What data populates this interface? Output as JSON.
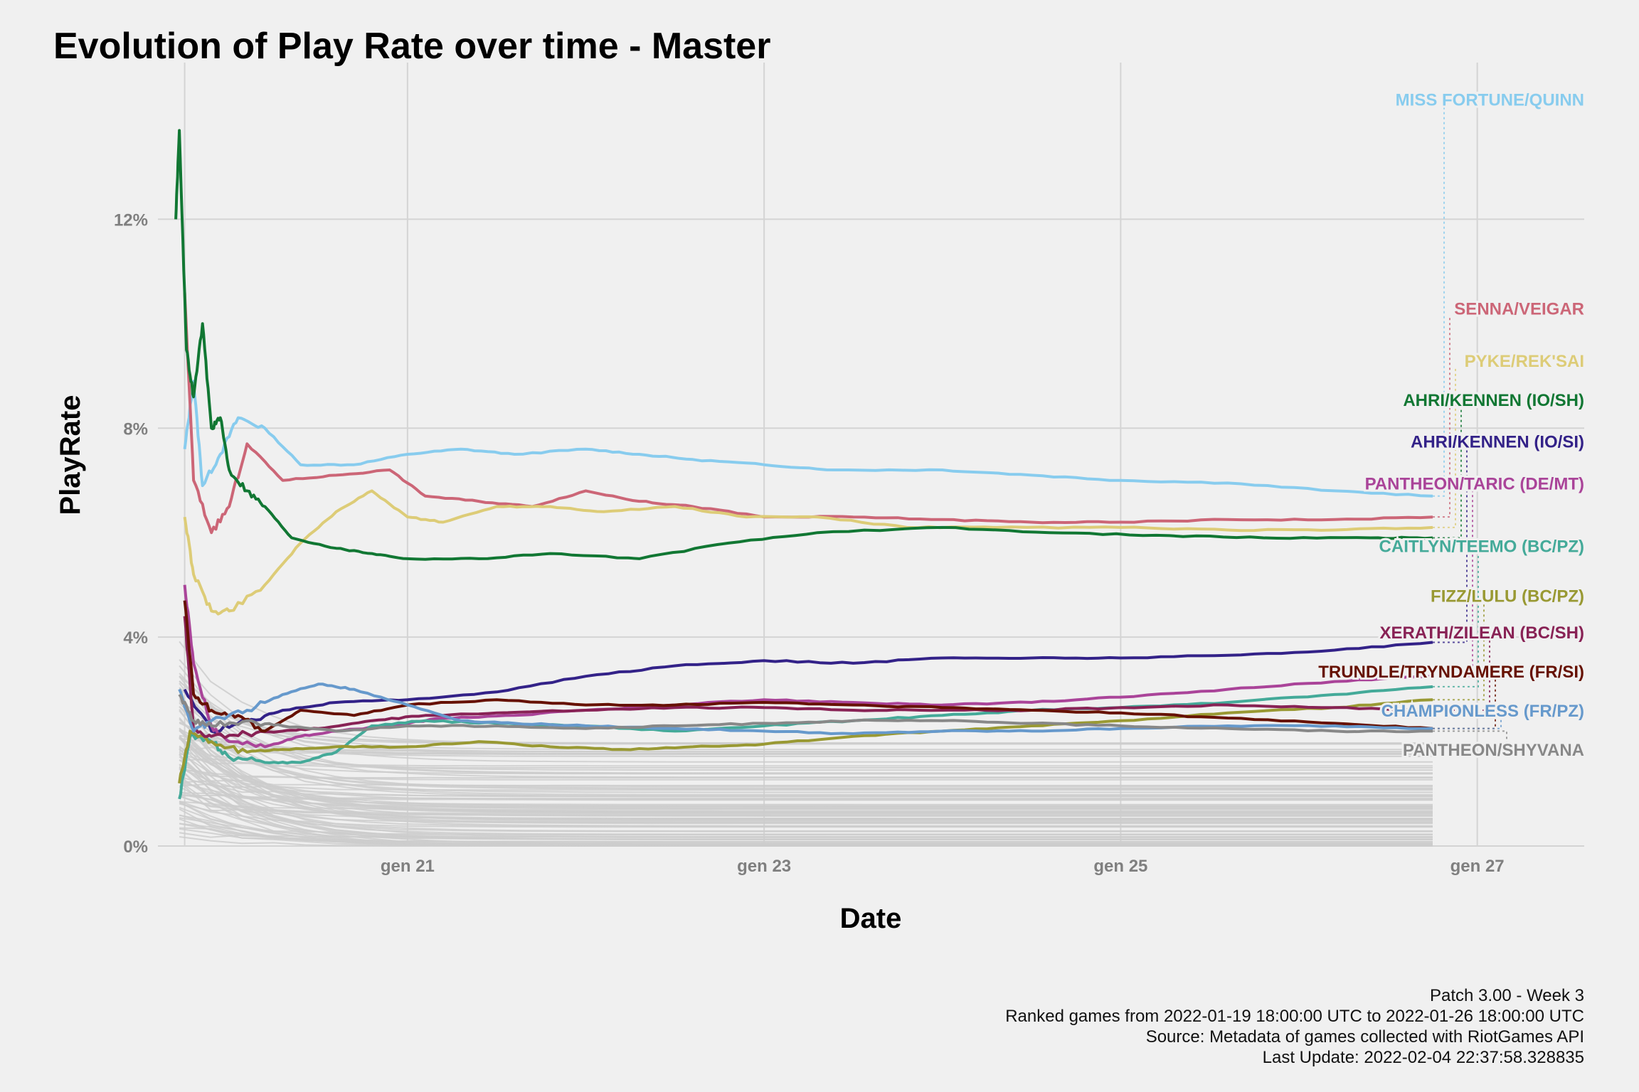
{
  "chart_data": {
    "type": "line",
    "title": "Evolution of Play Rate over time - Master",
    "xlabel": "Date",
    "ylabel": "PlayRate",
    "x_ticks": [
      "gen 21",
      "gen 23",
      "gen 25",
      "gen 27"
    ],
    "y_ticks": [
      "0%",
      "4%",
      "8%",
      "12%"
    ],
    "x_range_days": [
      19.6,
      27.6
    ],
    "ylim": [
      0,
      15
    ],
    "grid": true,
    "highlight_color_note": "highlighted series colored, all others light grey",
    "series": [
      {
        "name": "MISS FORTUNE/QUINN",
        "color": "#88ccee",
        "points": [
          [
            19.75,
            7.6
          ],
          [
            19.8,
            8.9
          ],
          [
            19.85,
            6.9
          ],
          [
            19.95,
            7.5
          ],
          [
            20.05,
            8.2
          ],
          [
            20.2,
            8.0
          ],
          [
            20.4,
            7.3
          ],
          [
            20.7,
            7.3
          ],
          [
            21.0,
            7.5
          ],
          [
            21.3,
            7.6
          ],
          [
            21.6,
            7.5
          ],
          [
            22.0,
            7.6
          ],
          [
            22.3,
            7.5
          ],
          [
            22.6,
            7.4
          ],
          [
            23.0,
            7.3
          ],
          [
            23.4,
            7.2
          ],
          [
            24.0,
            7.2
          ],
          [
            24.5,
            7.1
          ],
          [
            25.0,
            7.0
          ],
          [
            25.6,
            6.95
          ],
          [
            26.2,
            6.8
          ],
          [
            26.75,
            6.7
          ]
        ]
      },
      {
        "name": "SENNA/VEIGAR",
        "color": "#cc6677",
        "points": [
          [
            19.75,
            10.6
          ],
          [
            19.8,
            7.0
          ],
          [
            19.9,
            6.0
          ],
          [
            20.0,
            6.5
          ],
          [
            20.1,
            7.7
          ],
          [
            20.3,
            7.0
          ],
          [
            20.6,
            7.1
          ],
          [
            20.9,
            7.2
          ],
          [
            21.1,
            6.7
          ],
          [
            21.4,
            6.6
          ],
          [
            21.7,
            6.5
          ],
          [
            22.0,
            6.8
          ],
          [
            22.3,
            6.6
          ],
          [
            22.6,
            6.5
          ],
          [
            23.0,
            6.3
          ],
          [
            23.5,
            6.3
          ],
          [
            24.0,
            6.25
          ],
          [
            24.5,
            6.2
          ],
          [
            25.0,
            6.2
          ],
          [
            25.6,
            6.25
          ],
          [
            26.2,
            6.25
          ],
          [
            26.75,
            6.3
          ]
        ]
      },
      {
        "name": "PYKE/REK'SAI",
        "color": "#ddcc77",
        "points": [
          [
            19.75,
            6.3
          ],
          [
            19.8,
            5.2
          ],
          [
            19.9,
            4.5
          ],
          [
            20.0,
            4.5
          ],
          [
            20.2,
            5.0
          ],
          [
            20.4,
            5.8
          ],
          [
            20.6,
            6.4
          ],
          [
            20.8,
            6.8
          ],
          [
            21.0,
            6.3
          ],
          [
            21.2,
            6.2
          ],
          [
            21.5,
            6.5
          ],
          [
            21.8,
            6.5
          ],
          [
            22.1,
            6.4
          ],
          [
            22.5,
            6.5
          ],
          [
            22.9,
            6.3
          ],
          [
            23.3,
            6.3
          ],
          [
            23.8,
            6.1
          ],
          [
            24.3,
            6.1
          ],
          [
            25.0,
            6.1
          ],
          [
            25.6,
            6.05
          ],
          [
            26.2,
            6.05
          ],
          [
            26.75,
            6.1
          ]
        ]
      },
      {
        "name": "AHRI/KENNEN (IO/SH)",
        "color": "#117733",
        "points": [
          [
            19.7,
            12.0
          ],
          [
            19.72,
            13.7
          ],
          [
            19.76,
            9.5
          ],
          [
            19.8,
            8.6
          ],
          [
            19.85,
            10.0
          ],
          [
            19.9,
            8.0
          ],
          [
            19.95,
            8.2
          ],
          [
            20.0,
            7.2
          ],
          [
            20.1,
            6.8
          ],
          [
            20.2,
            6.5
          ],
          [
            20.35,
            5.9
          ],
          [
            20.6,
            5.7
          ],
          [
            20.8,
            5.6
          ],
          [
            21.0,
            5.5
          ],
          [
            21.4,
            5.5
          ],
          [
            21.8,
            5.6
          ],
          [
            22.3,
            5.5
          ],
          [
            22.8,
            5.8
          ],
          [
            23.3,
            6.0
          ],
          [
            24.0,
            6.1
          ],
          [
            24.6,
            6.0
          ],
          [
            25.2,
            5.95
          ],
          [
            25.8,
            5.9
          ],
          [
            26.4,
            5.9
          ],
          [
            26.75,
            5.9
          ]
        ]
      },
      {
        "name": "AHRI/KENNEN (IO/SI)",
        "color": "#332288",
        "points": [
          [
            19.75,
            3.0
          ],
          [
            19.9,
            2.2
          ],
          [
            20.1,
            2.4
          ],
          [
            20.3,
            2.6
          ],
          [
            20.6,
            2.75
          ],
          [
            21.0,
            2.8
          ],
          [
            21.5,
            2.95
          ],
          [
            22.0,
            3.25
          ],
          [
            22.5,
            3.45
          ],
          [
            23.0,
            3.55
          ],
          [
            23.5,
            3.5
          ],
          [
            24.0,
            3.6
          ],
          [
            24.5,
            3.6
          ],
          [
            25.0,
            3.6
          ],
          [
            25.6,
            3.65
          ],
          [
            26.2,
            3.75
          ],
          [
            26.75,
            3.9
          ]
        ]
      },
      {
        "name": "PANTHEON/TARIC (DE/MT)",
        "color": "#aa4499",
        "points": [
          [
            19.75,
            5.0
          ],
          [
            19.8,
            3.5
          ],
          [
            19.9,
            2.3
          ],
          [
            20.0,
            2.0
          ],
          [
            20.2,
            1.9
          ],
          [
            20.4,
            2.1
          ],
          [
            20.6,
            2.2
          ],
          [
            20.9,
            2.3
          ],
          [
            21.2,
            2.45
          ],
          [
            21.6,
            2.5
          ],
          [
            22.0,
            2.6
          ],
          [
            22.5,
            2.7
          ],
          [
            23.0,
            2.8
          ],
          [
            23.5,
            2.75
          ],
          [
            24.0,
            2.7
          ],
          [
            24.5,
            2.75
          ],
          [
            25.0,
            2.85
          ],
          [
            25.6,
            3.0
          ],
          [
            26.2,
            3.15
          ],
          [
            26.75,
            3.25
          ]
        ]
      },
      {
        "name": "CAITLYN/TEEMO (BC/PZ)",
        "color": "#44aa99",
        "points": [
          [
            19.72,
            0.9
          ],
          [
            19.78,
            2.1
          ],
          [
            19.9,
            2.0
          ],
          [
            20.0,
            1.7
          ],
          [
            20.2,
            1.6
          ],
          [
            20.4,
            1.6
          ],
          [
            20.6,
            1.8
          ],
          [
            20.8,
            2.3
          ],
          [
            21.1,
            2.4
          ],
          [
            21.5,
            2.35
          ],
          [
            22.0,
            2.3
          ],
          [
            22.5,
            2.2
          ],
          [
            23.0,
            2.3
          ],
          [
            23.5,
            2.4
          ],
          [
            24.0,
            2.5
          ],
          [
            24.5,
            2.6
          ],
          [
            25.0,
            2.65
          ],
          [
            25.6,
            2.75
          ],
          [
            26.2,
            2.9
          ],
          [
            26.75,
            3.05
          ]
        ]
      },
      {
        "name": "FIZZ/LULU (BC/PZ)",
        "color": "#999933",
        "points": [
          [
            19.72,
            1.2
          ],
          [
            19.78,
            2.2
          ],
          [
            19.9,
            2.0
          ],
          [
            20.1,
            1.8
          ],
          [
            20.3,
            1.85
          ],
          [
            20.6,
            1.9
          ],
          [
            21.0,
            1.9
          ],
          [
            21.4,
            2.0
          ],
          [
            21.8,
            1.9
          ],
          [
            22.2,
            1.85
          ],
          [
            22.6,
            1.9
          ],
          [
            23.0,
            1.95
          ],
          [
            23.5,
            2.1
          ],
          [
            24.0,
            2.2
          ],
          [
            24.5,
            2.3
          ],
          [
            25.0,
            2.4
          ],
          [
            25.6,
            2.55
          ],
          [
            26.2,
            2.65
          ],
          [
            26.75,
            2.8
          ]
        ]
      },
      {
        "name": "XERATH/ZILEAN (BC/SH)",
        "color": "#882255",
        "points": [
          [
            19.75,
            4.4
          ],
          [
            19.8,
            2.2
          ],
          [
            19.9,
            2.1
          ],
          [
            20.1,
            2.15
          ],
          [
            20.3,
            2.2
          ],
          [
            20.5,
            2.25
          ],
          [
            20.8,
            2.4
          ],
          [
            21.1,
            2.5
          ],
          [
            21.5,
            2.55
          ],
          [
            22.0,
            2.6
          ],
          [
            22.5,
            2.65
          ],
          [
            23.0,
            2.65
          ],
          [
            23.5,
            2.6
          ],
          [
            24.0,
            2.6
          ],
          [
            24.5,
            2.6
          ],
          [
            25.0,
            2.65
          ],
          [
            25.6,
            2.7
          ],
          [
            26.2,
            2.65
          ],
          [
            26.75,
            2.6
          ]
        ]
      },
      {
        "name": "TRUNDLE/TRYNDAMERE (FR/SI)",
        "color": "#661100",
        "points": [
          [
            19.75,
            4.7
          ],
          [
            19.8,
            2.9
          ],
          [
            19.9,
            2.6
          ],
          [
            20.05,
            2.5
          ],
          [
            20.2,
            2.2
          ],
          [
            20.4,
            2.6
          ],
          [
            20.7,
            2.5
          ],
          [
            21.0,
            2.7
          ],
          [
            21.5,
            2.8
          ],
          [
            22.0,
            2.7
          ],
          [
            22.5,
            2.7
          ],
          [
            23.0,
            2.75
          ],
          [
            23.5,
            2.7
          ],
          [
            24.0,
            2.65
          ],
          [
            24.5,
            2.6
          ],
          [
            25.0,
            2.55
          ],
          [
            25.6,
            2.45
          ],
          [
            26.2,
            2.35
          ],
          [
            26.75,
            2.25
          ]
        ]
      },
      {
        "name": "CHAMPIONLESS (FR/PZ)",
        "color": "#6699cc",
        "points": [
          [
            19.72,
            3.0
          ],
          [
            19.8,
            2.2
          ],
          [
            19.9,
            2.4
          ],
          [
            20.1,
            2.6
          ],
          [
            20.3,
            2.9
          ],
          [
            20.5,
            3.1
          ],
          [
            20.7,
            3.0
          ],
          [
            21.0,
            2.7
          ],
          [
            21.3,
            2.4
          ],
          [
            21.6,
            2.35
          ],
          [
            22.0,
            2.3
          ],
          [
            22.5,
            2.25
          ],
          [
            23.0,
            2.2
          ],
          [
            23.5,
            2.15
          ],
          [
            24.0,
            2.2
          ],
          [
            24.5,
            2.2
          ],
          [
            25.0,
            2.25
          ],
          [
            25.6,
            2.3
          ],
          [
            26.2,
            2.3
          ],
          [
            26.75,
            2.25
          ]
        ]
      },
      {
        "name": "PANTHEON/SHYVANA",
        "color": "#888888",
        "points": [
          [
            19.72,
            2.9
          ],
          [
            19.8,
            2.4
          ],
          [
            19.9,
            2.3
          ],
          [
            20.1,
            2.4
          ],
          [
            20.3,
            2.3
          ],
          [
            20.6,
            2.2
          ],
          [
            21.0,
            2.3
          ],
          [
            21.5,
            2.3
          ],
          [
            22.0,
            2.25
          ],
          [
            22.5,
            2.3
          ],
          [
            23.0,
            2.35
          ],
          [
            23.5,
            2.4
          ],
          [
            24.0,
            2.4
          ],
          [
            24.5,
            2.35
          ],
          [
            25.0,
            2.3
          ],
          [
            25.6,
            2.25
          ],
          [
            26.2,
            2.2
          ],
          [
            26.75,
            2.2
          ]
        ]
      }
    ],
    "end_labels": [
      {
        "text": "MISS FORTUNE/QUINN",
        "color": "#88ccee",
        "y": 14.3
      },
      {
        "text": "SENNA/VEIGAR",
        "color": "#cc6677",
        "y": 10.3
      },
      {
        "text": "PYKE/REK'SAI",
        "color": "#ddcc77",
        "y": 9.3
      },
      {
        "text": "AHRI/KENNEN (IO/SH)",
        "color": "#117733",
        "y": 8.55
      },
      {
        "text": "AHRI/KENNEN (IO/SI)",
        "color": "#332288",
        "y": 7.75
      },
      {
        "text": "PANTHEON/TARIC (DE/MT)",
        "color": "#aa4499",
        "y": 6.95
      },
      {
        "text": "CAITLYN/TEEMO (BC/PZ)",
        "color": "#44aa99",
        "y": 5.75
      },
      {
        "text": "FIZZ/LULU (BC/PZ)",
        "color": "#999933",
        "y": 4.8
      },
      {
        "text": "XERATH/ZILEAN (BC/SH)",
        "color": "#882255",
        "y": 4.1
      },
      {
        "text": "TRUNDLE/TRYNDAMERE (FR/SI)",
        "color": "#661100",
        "y": 3.35
      },
      {
        "text": "CHAMPIONLESS (FR/PZ)",
        "color": "#6699cc",
        "y": 2.6
      },
      {
        "text": "PANTHEON/SHYVANA",
        "color": "#888888",
        "y": 1.85
      }
    ],
    "background_series_color": "#cccccc"
  },
  "caption": [
    "Patch 3.00 - Week 3",
    "Ranked games from 2022-01-19 18:00:00 UTC to 2022-01-26 18:00:00 UTC",
    "Source: Metadata of games collected with RiotGames API",
    "Last Update: 2022-02-04 22:37:58.328835"
  ]
}
